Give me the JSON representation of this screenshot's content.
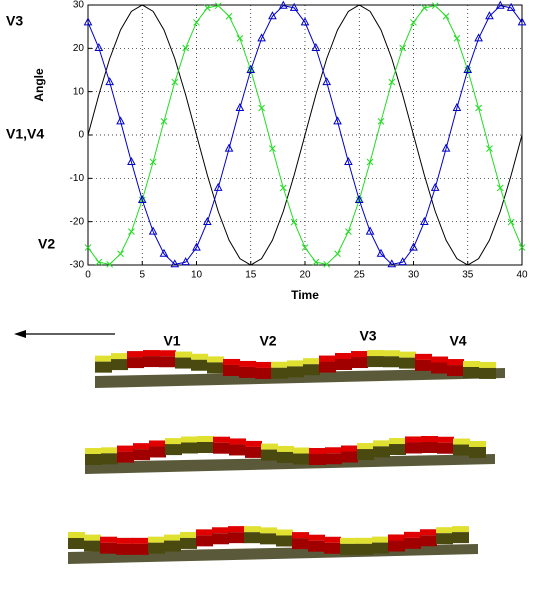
{
  "chart_data": {
    "type": "line",
    "xlabel": "Time",
    "ylabel": "Angle",
    "annotations": [
      "V3",
      "V1,V4",
      "V2"
    ],
    "x": [
      0,
      1,
      2,
      3,
      4,
      5,
      6,
      7,
      8,
      9,
      10,
      11,
      12,
      13,
      14,
      15,
      16,
      17,
      18,
      19,
      20,
      21,
      22,
      23,
      24,
      25,
      26,
      27,
      28,
      29,
      30,
      31,
      32,
      33,
      34,
      35,
      36,
      37,
      38,
      39,
      40
    ],
    "series": [
      {
        "color": "#000000",
        "marker": "none",
        "values": [
          0,
          9.27,
          17.63,
          24.27,
          28.53,
          30,
          28.53,
          24.27,
          17.63,
          9.27,
          0,
          -9.27,
          -17.63,
          -24.27,
          -28.53,
          -30,
          -28.53,
          -24.27,
          -17.63,
          -9.27,
          0,
          9.27,
          17.63,
          24.27,
          28.53,
          30,
          28.53,
          24.27,
          17.63,
          9.27,
          0,
          -9.27,
          -17.63,
          -24.27,
          -28.53,
          -30,
          -28.53,
          -24.27,
          -17.63,
          -9.27,
          0
        ]
      },
      {
        "color": "#22dd22",
        "marker": "x",
        "values": [
          -25.98,
          -29.34,
          -29.84,
          -27.41,
          -22.29,
          -15,
          -6.24,
          3.14,
          12.2,
          20.07,
          25.98,
          29.34,
          29.84,
          27.41,
          22.29,
          15,
          6.24,
          -3.14,
          -12.2,
          -20.07,
          -25.98,
          -29.34,
          -29.84,
          -27.41,
          -22.29,
          -15,
          -6.24,
          3.14,
          12.2,
          20.07,
          25.98,
          29.34,
          29.84,
          27.41,
          22.29,
          15,
          6.24,
          -3.14,
          -12.2,
          -20.07,
          -25.98
        ]
      },
      {
        "color": "#0000cc",
        "marker": "triangle",
        "values": [
          25.98,
          20.07,
          12.2,
          3.14,
          -6.24,
          -15,
          -22.29,
          -27.41,
          -29.84,
          -29.34,
          -25.98,
          -20.07,
          -12.2,
          -3.14,
          6.24,
          15,
          22.29,
          27.41,
          29.84,
          29.34,
          25.98,
          20.07,
          12.2,
          3.14,
          -6.24,
          -15,
          -22.29,
          -27.41,
          -29.84,
          -29.34,
          -25.98,
          -20.07,
          -12.2,
          -3.14,
          6.24,
          15,
          22.29,
          27.41,
          29.84,
          29.34,
          25.98
        ]
      }
    ],
    "xlim": [
      0,
      40
    ],
    "ylim": [
      -30,
      30
    ],
    "xticks": [
      0,
      5,
      10,
      15,
      20,
      25,
      30,
      35,
      40
    ],
    "yticks": [
      -30,
      -20,
      -10,
      0,
      10,
      20,
      30
    ],
    "grid": true
  },
  "figure": {
    "labels": [
      "V1",
      "V2",
      "V3",
      "V4"
    ]
  }
}
